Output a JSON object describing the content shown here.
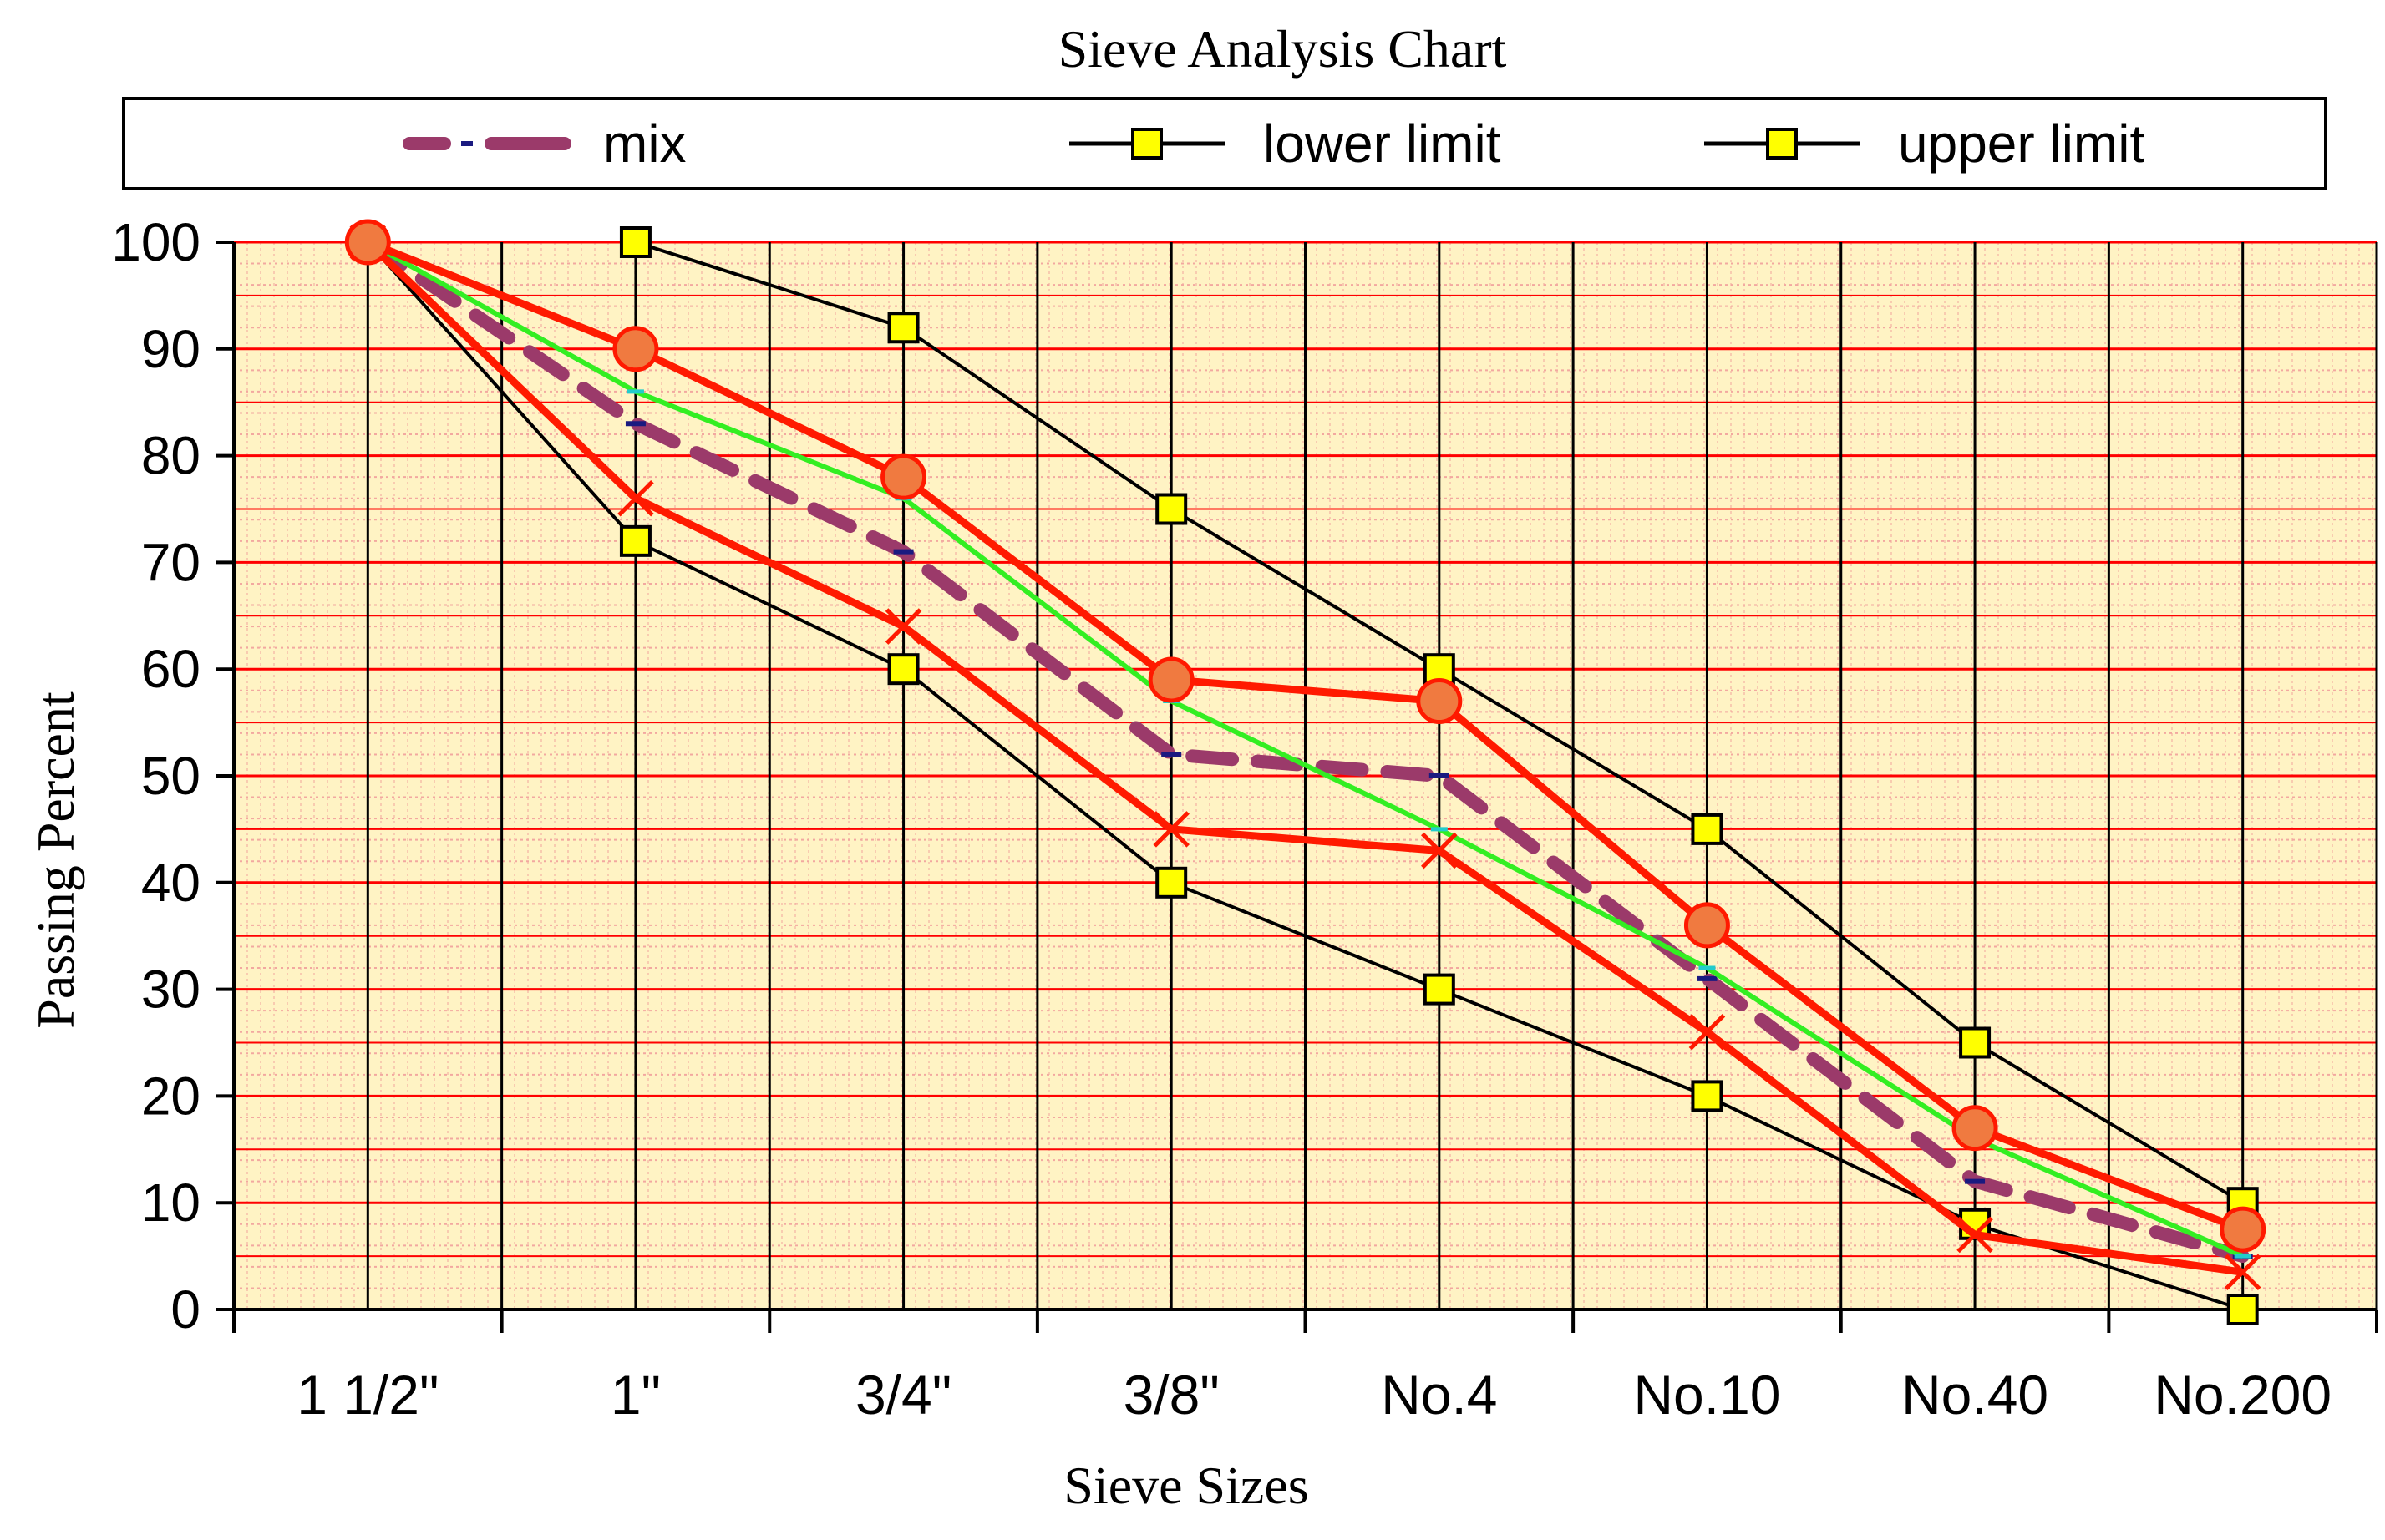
{
  "chart_data": {
    "type": "line",
    "title": "Sieve Analysis Chart",
    "xlabel": "Sieve Sizes",
    "ylabel": "Passing Percent",
    "categories": [
      "1 1/2\"",
      "1\"",
      "3/4\"",
      "3/8\"",
      "No.4",
      "No.10",
      "No.40",
      "No.200"
    ],
    "ylim": [
      0,
      100
    ],
    "yticks": [
      0,
      10,
      20,
      30,
      40,
      50,
      60,
      70,
      80,
      90,
      100
    ],
    "grid": true,
    "legend_position": "top",
    "legend": [
      {
        "name": "mix",
        "style": "dashed",
        "color": "#9b3a6a"
      },
      {
        "name": "lower limit",
        "style": "solid-square-marker",
        "color": "#000000"
      },
      {
        "name": "upper limit",
        "style": "solid-square-marker",
        "color": "#000000"
      }
    ],
    "series": [
      {
        "name": "mix",
        "legend": true,
        "color": "#9b3a6a",
        "style": "dashed",
        "x": [
          0,
          1,
          2,
          3,
          4,
          5,
          6,
          7
        ],
        "values": [
          100,
          83,
          71,
          52,
          50,
          31,
          12,
          5
        ]
      },
      {
        "name": "lower limit",
        "legend": true,
        "color": "#000000",
        "style": "solid",
        "marker": "square",
        "x": [
          0,
          1,
          2,
          3,
          4,
          5,
          6,
          7
        ],
        "values": [
          100,
          72,
          60,
          40,
          30,
          20,
          8,
          0
        ]
      },
      {
        "name": "upper limit",
        "legend": true,
        "color": "#000000",
        "style": "solid",
        "marker": "square",
        "x": [
          1,
          2,
          3,
          4,
          5,
          6,
          7
        ],
        "values": [
          100,
          92,
          75,
          60,
          45,
          25,
          10
        ]
      },
      {
        "name": "green series",
        "legend": false,
        "color": "#33ee22",
        "style": "solid",
        "x": [
          0,
          1,
          2,
          3,
          4,
          5,
          6,
          7
        ],
        "values": [
          100,
          86,
          76,
          57,
          45,
          32,
          16,
          5
        ]
      },
      {
        "name": "red circle series",
        "legend": false,
        "color": "#ff1a00",
        "style": "solid",
        "marker": "circle",
        "x": [
          0,
          1,
          2,
          3,
          4,
          5,
          6,
          7
        ],
        "values": [
          100,
          90,
          78,
          59,
          57,
          36,
          17,
          7.5
        ]
      },
      {
        "name": "red cross series",
        "legend": false,
        "color": "#ff1a00",
        "style": "solid",
        "marker": "cross",
        "x": [
          0,
          1,
          2,
          3,
          4,
          5,
          6,
          7
        ],
        "values": [
          100,
          76,
          64,
          45,
          43,
          26,
          7,
          3.5
        ]
      }
    ],
    "colors": {
      "plot_background": "#fff3c4",
      "major_grid": "#ff0000",
      "minor_grid": "#f2a8a0",
      "vertical_grid": "#000000",
      "marker_fill": "#ffff00",
      "circle_fill": "#f07a40"
    }
  }
}
